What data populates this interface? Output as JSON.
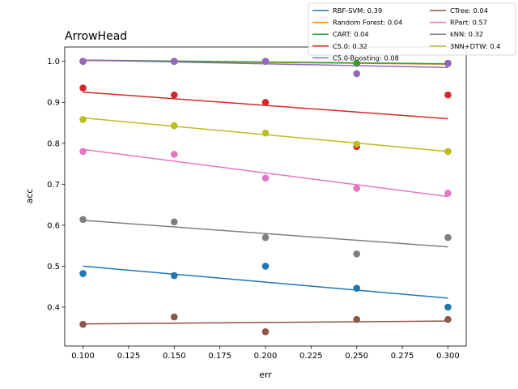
{
  "chart_data": {
    "type": "scatter",
    "title": "ArrowHead",
    "xlabel": "err",
    "ylabel": "acc",
    "xlim": [
      0.09,
      0.31
    ],
    "ylim": [
      0.305,
      1.035
    ],
    "xticks": [
      0.1,
      0.125,
      0.15,
      0.175,
      0.2,
      0.225,
      0.25,
      0.275,
      0.3
    ],
    "xtick_labels": [
      "0.100",
      "0.125",
      "0.150",
      "0.175",
      "0.200",
      "0.225",
      "0.250",
      "0.275",
      "0.300"
    ],
    "yticks": [
      0.4,
      0.5,
      0.6,
      0.7,
      0.8,
      0.9,
      1.0
    ],
    "ytick_labels": [
      "0.4",
      "0.5",
      "0.6",
      "0.7",
      "0.8",
      "0.9",
      "1.0"
    ],
    "grid": false,
    "legend_position": "top-right, outside plot",
    "legend_columns": 2,
    "x": [
      0.1,
      0.15,
      0.2,
      0.25,
      0.3
    ],
    "series": [
      {
        "name": "RBF-SVM: 0.39",
        "color": "#1f77b4",
        "values": [
          0.482,
          0.477,
          0.5,
          0.446,
          0.4
        ],
        "fit": [
          0.5,
          0.422
        ]
      },
      {
        "name": "Random Forest: 0.04",
        "color": "#ff7f0e",
        "values": [
          1.0,
          1.0,
          1.0,
          0.995,
          0.995
        ],
        "fit": [
          1.002,
          0.993
        ]
      },
      {
        "name": "CART: 0.04",
        "color": "#2ca02c",
        "values": [
          1.0,
          1.0,
          1.0,
          0.995,
          0.995
        ],
        "fit": [
          1.003,
          0.994
        ]
      },
      {
        "name": "C5.0: 0.32",
        "color": "#d62728",
        "values": [
          0.935,
          0.918,
          0.9,
          0.792,
          0.918
        ],
        "fit": [
          0.925,
          0.86
        ]
      },
      {
        "name": "C5.0-Boosting: 0.08",
        "color": "#9467bd",
        "values": [
          1.0,
          1.0,
          1.0,
          0.97,
          0.995
        ],
        "fit": [
          1.003,
          0.985
        ]
      },
      {
        "name": "CTree: 0.04",
        "color": "#8c564b",
        "values": [
          0.358,
          0.376,
          0.34,
          0.37,
          0.37
        ],
        "fit": [
          0.359,
          0.366
        ]
      },
      {
        "name": "RPart: 0.57",
        "color": "#e377c2",
        "values": [
          0.78,
          0.773,
          0.715,
          0.69,
          0.678
        ],
        "fit": [
          0.785,
          0.67
        ]
      },
      {
        "name": "kNN: 0.32",
        "color": "#7f7f7f",
        "values": [
          0.614,
          0.608,
          0.57,
          0.53,
          0.57
        ],
        "fit": [
          0.612,
          0.547
        ]
      },
      {
        "name": "3NN+DTW: 0.4",
        "color": "#bcbd22",
        "values": [
          0.858,
          0.843,
          0.825,
          0.798,
          0.78
        ],
        "fit": [
          0.862,
          0.78
        ]
      }
    ]
  }
}
